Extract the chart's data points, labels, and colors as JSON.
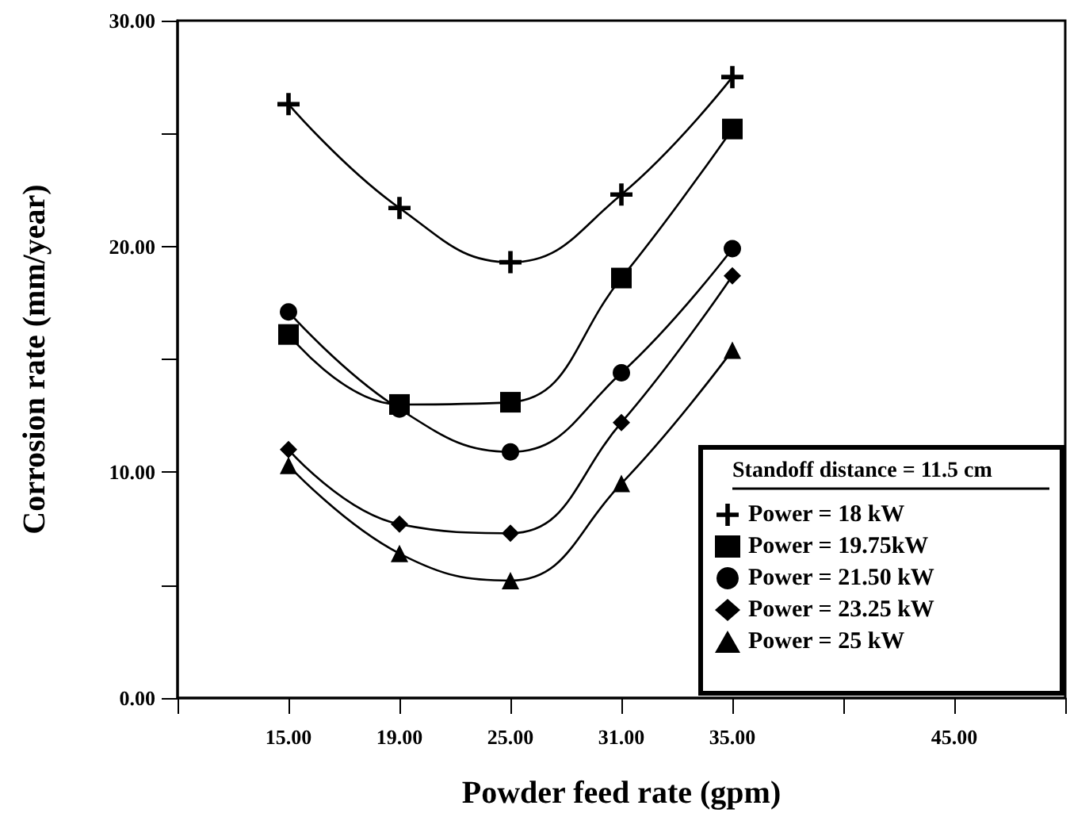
{
  "chart_data": {
    "type": "line",
    "xlabel": "Powder feed rate (gpm)",
    "ylabel": "Corrosion rate (mm/year)",
    "legend_title": "Standoff distance = 11.5 cm",
    "categories": [
      null,
      "15.00",
      "19.00",
      "25.00",
      "31.00",
      "35.00",
      null,
      "45.00",
      null
    ],
    "ylim": [
      0,
      30
    ],
    "yticks": [
      {
        "value": 0,
        "label": "0.00"
      },
      {
        "value": 5,
        "label": null
      },
      {
        "value": 10,
        "label": "10.00"
      },
      {
        "value": 15,
        "label": null
      },
      {
        "value": 20,
        "label": "20.00"
      },
      {
        "value": 25,
        "label": null
      },
      {
        "value": 30,
        "label": "30.00"
      }
    ],
    "grid": false,
    "legend": "bottom right",
    "line_style": "solid",
    "series": [
      {
        "name": "Power = 18 kW",
        "color": "#000000",
        "marker": "cross",
        "values": [
          null,
          26.3,
          21.7,
          19.3,
          22.3,
          27.5,
          null,
          null,
          null
        ]
      },
      {
        "name": "Power = 19.75kW",
        "color": "#000000",
        "marker": "square",
        "values": [
          null,
          16.1,
          13.0,
          13.1,
          18.6,
          25.2,
          null,
          null,
          null
        ]
      },
      {
        "name": "Power = 21.50 kW",
        "color": "#000000",
        "marker": "circle",
        "values": [
          null,
          17.1,
          12.8,
          10.9,
          14.4,
          19.9,
          null,
          null,
          null
        ]
      },
      {
        "name": "Power = 23.25 kW",
        "color": "#000000",
        "marker": "diamond",
        "values": [
          null,
          11.0,
          7.7,
          7.3,
          12.2,
          18.7,
          null,
          null,
          null
        ]
      },
      {
        "name": "Power = 25 kW",
        "color": "#000000",
        "marker": "triangle",
        "values": [
          null,
          10.3,
          6.4,
          5.2,
          9.5,
          15.4,
          null,
          null,
          null
        ]
      }
    ]
  }
}
